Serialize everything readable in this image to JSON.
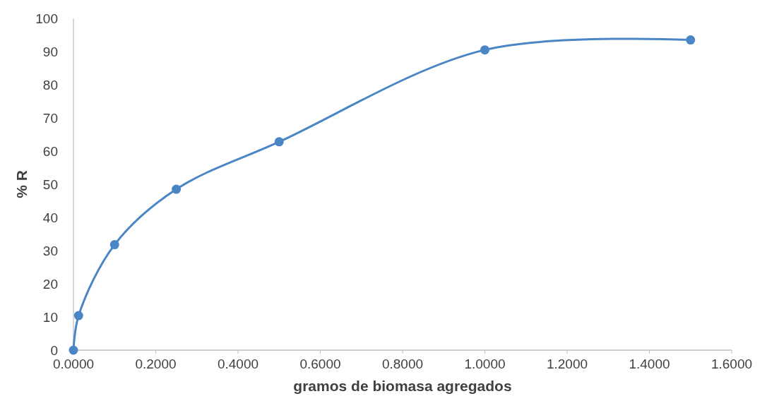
{
  "chart_data": {
    "type": "line",
    "xlabel": "gramos de biomasa agregados",
    "ylabel": "% R",
    "x": [
      0,
      0.0125,
      0.1,
      0.25,
      0.5,
      1.0,
      1.5
    ],
    "series": [
      {
        "color": "#4a86c5",
        "values": [
          0,
          10.4,
          31.8,
          48.5,
          62.8,
          90.5,
          93.5
        ]
      }
    ],
    "xlim": [
      0,
      1.6
    ],
    "ylim": [
      0,
      100
    ],
    "xticks": [
      {
        "value": 0,
        "label": "0.0000"
      },
      {
        "value": 0.2,
        "label": "0.2000"
      },
      {
        "value": 0.4,
        "label": "0.4000"
      },
      {
        "value": 0.6,
        "label": "0.6000"
      },
      {
        "value": 0.8,
        "label": "0.8000"
      },
      {
        "value": 1.0,
        "label": "1.0000"
      },
      {
        "value": 1.2,
        "label": "1.2000"
      },
      {
        "value": 1.4,
        "label": "1.4000"
      },
      {
        "value": 1.6,
        "label": "1.6000"
      }
    ],
    "yticks": [
      0,
      10,
      20,
      30,
      40,
      50,
      60,
      70,
      80,
      90,
      100
    ],
    "marker": "circle",
    "line_style": "solid",
    "grid": false
  }
}
